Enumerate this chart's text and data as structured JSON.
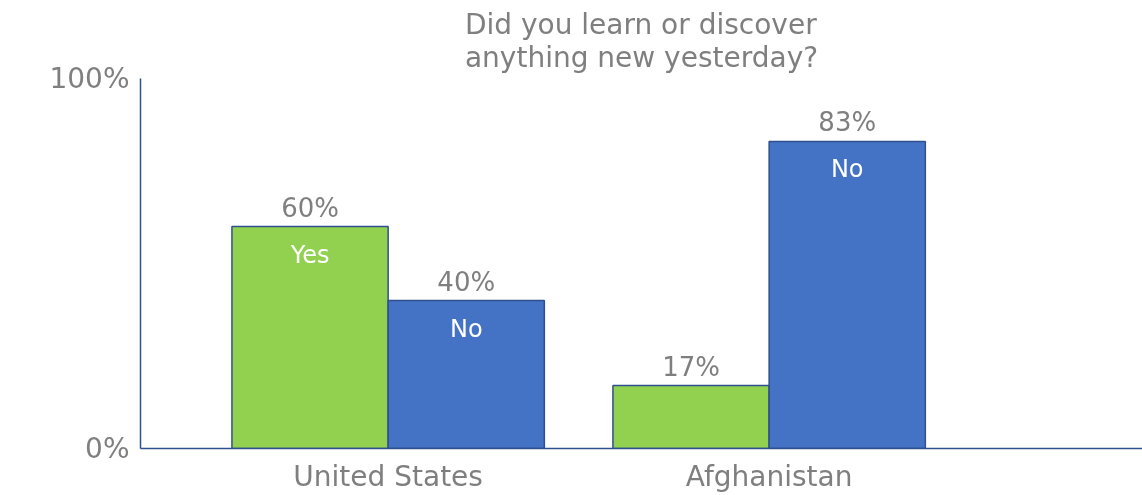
{
  "chart_data": {
    "type": "bar",
    "title": "Did you learn or discover anything new yesterday?",
    "categories": [
      "United States",
      "Afghanistan"
    ],
    "series": [
      {
        "name": "Yes",
        "color": "#92d050",
        "values": [
          60,
          17
        ],
        "value_labels": [
          "60%",
          "17%"
        ]
      },
      {
        "name": "No",
        "color": "#4472c4",
        "values": [
          40,
          83
        ],
        "value_labels": [
          "40%",
          "83%"
        ]
      }
    ],
    "ylim": [
      0,
      100
    ],
    "yticks": [
      {
        "value": 0,
        "label": "0%"
      },
      {
        "value": 100,
        "label": "100%"
      }
    ],
    "grid": false
  }
}
